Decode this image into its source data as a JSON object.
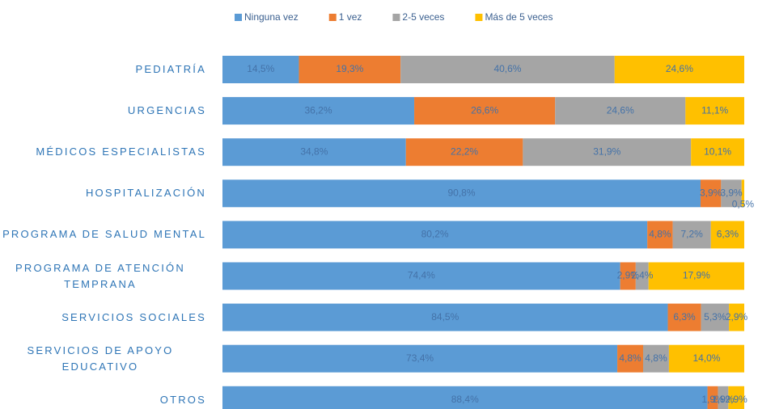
{
  "chart_data": {
    "type": "stacked_bar_100_horizontal",
    "categories": [
      "PEDIATRÍA",
      "URGENCIAS",
      "MÉDICOS ESPECIALISTAS",
      "HOSPITALIZACIÓN",
      "PROGRAMA DE SALUD MENTAL",
      "PROGRAMA DE ATENCIÓN TEMPRANA",
      "SERVICIOS SOCIALES",
      "SERVICIOS DE APOYO EDUCATIVO",
      "OTROS"
    ],
    "series": [
      {
        "name": "Ninguna vez",
        "color": "#5b9bd5",
        "values": [
          14.5,
          36.2,
          34.8,
          90.8,
          80.2,
          74.4,
          84.5,
          73.4,
          88.4
        ],
        "value_labels": [
          "14,5%",
          "36,2%",
          "34,8%",
          "90,8%",
          "80,2%",
          "74,4%",
          "84,5%",
          "73,4%",
          "88,4%"
        ]
      },
      {
        "name": "1 vez",
        "color": "#ed7d31",
        "values": [
          19.3,
          26.6,
          22.2,
          3.9,
          4.8,
          2.9,
          6.3,
          4.8,
          1.9
        ],
        "value_labels": [
          "19,3%",
          "26,6%",
          "22,2%",
          "3,9%",
          "4,8%",
          "2,9%",
          "6,3%",
          "4,8%",
          "1,9%"
        ]
      },
      {
        "name": "2-5 veces",
        "color": "#a5a5a5",
        "values": [
          40.6,
          24.6,
          31.9,
          3.9,
          7.2,
          2.4,
          5.3,
          4.8,
          1.9
        ],
        "value_labels": [
          "40,6%",
          "24,6%",
          "31,9%",
          "3,9%",
          "7,2%",
          "2,4%",
          "5,3%",
          "4,8%",
          "1,9%"
        ]
      },
      {
        "name": "Más de 5 veces",
        "color": "#ffc000",
        "values": [
          24.6,
          11.1,
          10.1,
          0.5,
          6.3,
          17.9,
          2.9,
          14.0,
          2.9
        ],
        "value_labels": [
          "24,6%",
          "11,1%",
          "10,1%",
          "0,5%",
          "6,3%",
          "17,9%",
          "2,9%",
          "14,0%",
          "2,9%"
        ]
      }
    ],
    "legend": "top"
  }
}
